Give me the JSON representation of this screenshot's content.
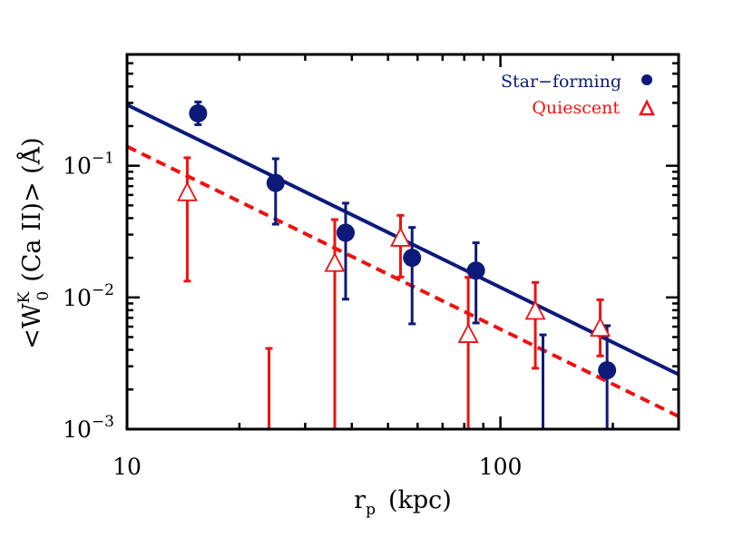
{
  "chart_data": {
    "type": "scatter",
    "xlabel": "r",
    "xlabel_sub": "p",
    "xlabel_unit": "(kpc)",
    "ylabel_prefix": "<W",
    "ylabel_sup": "K",
    "ylabel_sub": "0",
    "ylabel_suffix": "(Ca II)> (Å)",
    "xscale": "log",
    "yscale": "log",
    "xlim": [
      10,
      300
    ],
    "ylim": [
      0.001,
      0.7
    ],
    "xticks": [
      {
        "value": 10,
        "label": "10"
      },
      {
        "value": 100,
        "label": "100"
      }
    ],
    "yticks": [
      {
        "value": 0.001,
        "base": "10",
        "exp": "−3"
      },
      {
        "value": 0.01,
        "base": "10",
        "exp": "−2"
      },
      {
        "value": 0.1,
        "base": "10",
        "exp": "−1"
      }
    ],
    "legend_position": "top-right",
    "series": [
      {
        "name": "Star−forming",
        "color": "#0d1a7a",
        "marker": "filled-circle",
        "line": "solid",
        "fit": {
          "x": [
            10,
            300
          ],
          "y": [
            0.29,
            0.0026
          ]
        },
        "points": [
          {
            "x": 15.5,
            "y": 0.25,
            "lo": 0.205,
            "hi": 0.305
          },
          {
            "x": 25,
            "y": 0.074,
            "lo": 0.036,
            "hi": 0.113
          },
          {
            "x": 38.5,
            "y": 0.031,
            "lo": 0.0097,
            "hi": 0.052
          },
          {
            "x": 58,
            "y": 0.02,
            "lo": 0.0063,
            "hi": 0.034
          },
          {
            "x": 86,
            "y": 0.016,
            "lo": 0.0064,
            "hi": 0.026
          },
          {
            "x": 130,
            "y": null,
            "lo": 0.001,
            "hi": 0.0052
          },
          {
            "x": 193,
            "y": 0.0028,
            "lo": 0.001,
            "hi": 0.0061
          }
        ]
      },
      {
        "name": "Quiescent",
        "color": "#ee1111",
        "marker": "open-triangle",
        "line": "dashed",
        "fit": {
          "x": [
            10,
            300
          ],
          "y": [
            0.14,
            0.00125
          ]
        },
        "points": [
          {
            "x": 14.5,
            "y": 0.062,
            "lo": 0.0133,
            "hi": 0.115
          },
          {
            "x": 24,
            "y": null,
            "lo": 0.001,
            "hi": 0.0041
          },
          {
            "x": 36,
            "y": 0.018,
            "lo": 0.001,
            "hi": 0.039
          },
          {
            "x": 54,
            "y": 0.028,
            "lo": 0.0143,
            "hi": 0.042
          },
          {
            "x": 82,
            "y": 0.0052,
            "lo": 0.001,
            "hi": 0.0142
          },
          {
            "x": 124,
            "y": 0.0078,
            "lo": 0.0029,
            "hi": 0.013
          },
          {
            "x": 185,
            "y": 0.0058,
            "lo": 0.0036,
            "hi": 0.0096
          }
        ]
      }
    ]
  }
}
